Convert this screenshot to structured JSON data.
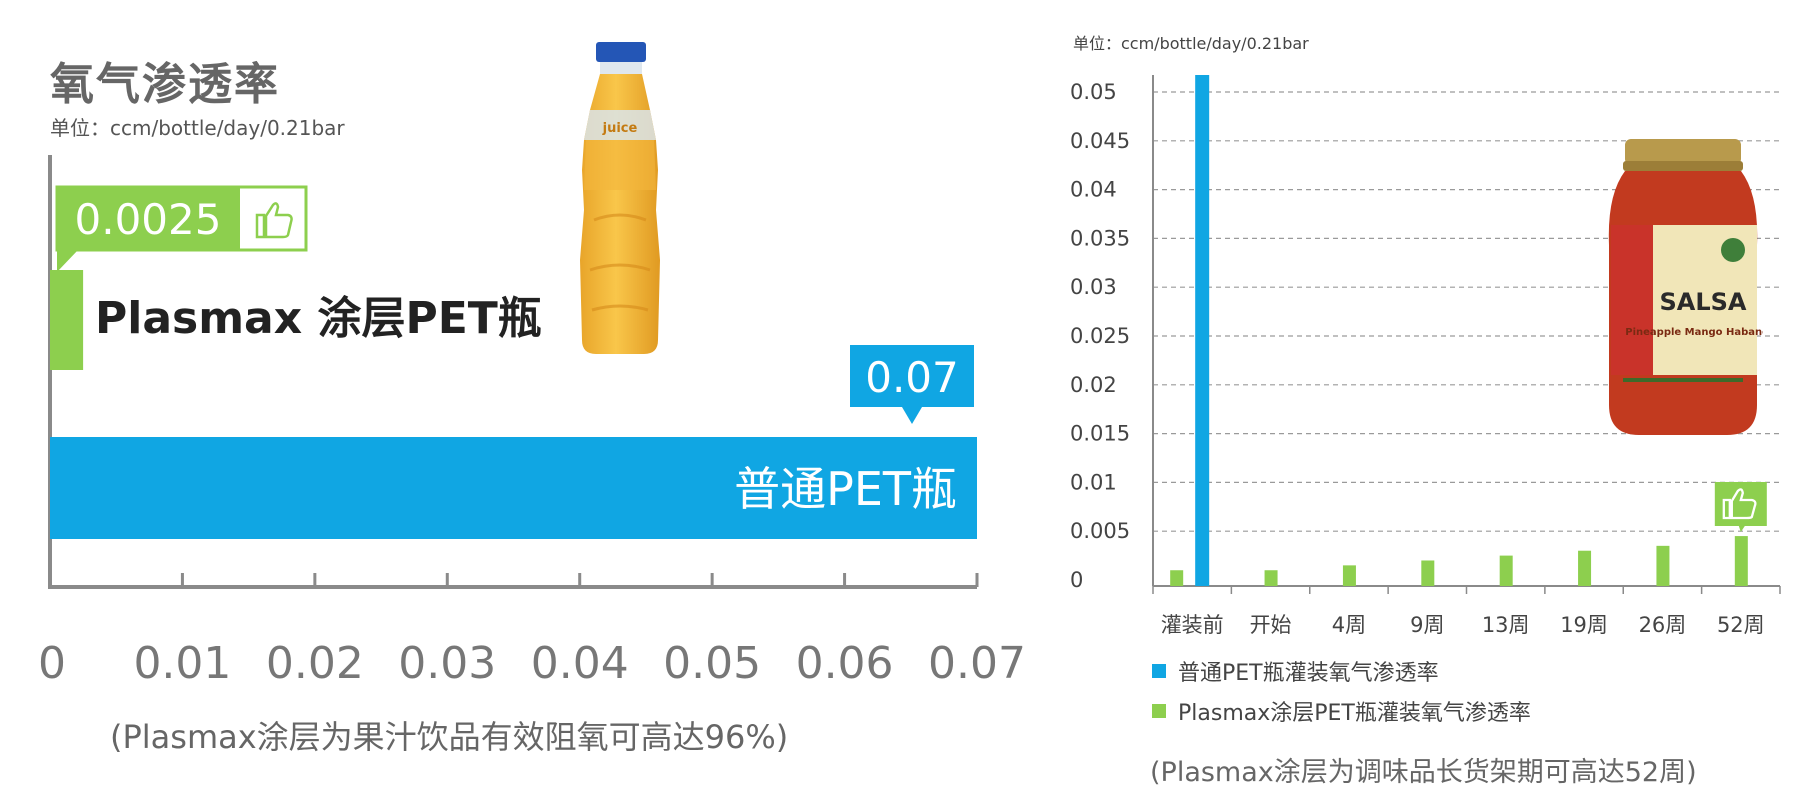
{
  "colors": {
    "blue": "#10A6E3",
    "green": "#8DCF4E",
    "axis": "#8a8a8a",
    "grid": "#9a9a9a"
  },
  "chart_data": [
    {
      "type": "bar",
      "orientation": "horizontal",
      "title": "氧气渗透率",
      "unit": "单位：ccm/bottle/day/0.21bar",
      "xlim": [
        0,
        0.07
      ],
      "xticks": [
        "0",
        "0.01",
        "0.02",
        "0.03",
        "0.04",
        "0.05",
        "0.06",
        "0.07"
      ],
      "bars": [
        {
          "name": "Plasmax 涂层PET瓶",
          "value": 0.0025,
          "label": "0.0025",
          "color": "#8DCF4E"
        },
        {
          "name": "普通PET瓶",
          "value": 0.07,
          "label": "0.07",
          "color": "#10A6E3"
        }
      ],
      "note": "(Plasmax涂层为果汁饮品有效阻氧可高达96%)"
    },
    {
      "type": "bar",
      "unit": "单位：ccm/bottle/day/0.21bar",
      "categories": [
        "灌装前",
        "开始",
        "4周",
        "9周",
        "13周",
        "19周",
        "26周",
        "52周"
      ],
      "ylim": [
        0,
        0.05
      ],
      "yticks": [
        "0",
        "0.005",
        "0.01",
        "0.015",
        "0.02",
        "0.025",
        "0.03",
        "0.035",
        "0.04",
        "0.045",
        "0.05"
      ],
      "grid": true,
      "legend_position": "bottom",
      "series": [
        {
          "name": "普通PET瓶灌装氧气渗透率",
          "color": "#10A6E3",
          "values": [
            0.052,
            null,
            null,
            null,
            null,
            null,
            null,
            null
          ]
        },
        {
          "name": "Plasmax涂层PET瓶灌装氧气渗透率",
          "color": "#8DCF4E",
          "values": [
            0.001,
            0.001,
            0.0015,
            0.002,
            0.0025,
            0.003,
            0.0035,
            0.0045
          ]
        }
      ],
      "note": "(Plasmax涂层为调味品长货架期可高达52周)"
    }
  ],
  "images": {
    "juice_bottle": {
      "brand_text": "juice"
    },
    "salsa_jar": {
      "label_text": "SALSA",
      "sub_text": "Pineapple Mango Habanero"
    }
  }
}
